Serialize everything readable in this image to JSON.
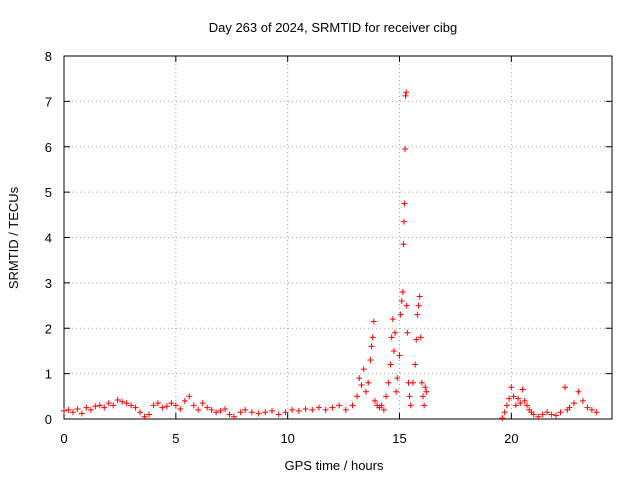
{
  "chart_data": {
    "type": "scatter",
    "title": "Day 263 of 2024, SRMTID for receiver cibg",
    "xlabel": "GPS time / hours",
    "ylabel": "SRMTID / TECUs",
    "xlim": [
      0,
      24.5
    ],
    "ylim": [
      0,
      8
    ],
    "xticks": [
      0,
      5,
      10,
      15,
      20
    ],
    "yticks": [
      0,
      1,
      2,
      3,
      4,
      5,
      6,
      7,
      8
    ],
    "grid": true,
    "marker": "+",
    "color": "#ff0000",
    "series": [
      {
        "name": "SRMTID",
        "points": [
          [
            0.0,
            0.18
          ],
          [
            0.2,
            0.2
          ],
          [
            0.4,
            0.15
          ],
          [
            0.6,
            0.22
          ],
          [
            0.8,
            0.12
          ],
          [
            1.0,
            0.25
          ],
          [
            1.2,
            0.2
          ],
          [
            1.4,
            0.28
          ],
          [
            1.6,
            0.3
          ],
          [
            1.8,
            0.25
          ],
          [
            2.0,
            0.35
          ],
          [
            2.2,
            0.3
          ],
          [
            2.4,
            0.42
          ],
          [
            2.6,
            0.38
          ],
          [
            2.8,
            0.35
          ],
          [
            3.0,
            0.3
          ],
          [
            3.2,
            0.25
          ],
          [
            3.4,
            0.15
          ],
          [
            3.6,
            0.05
          ],
          [
            3.8,
            0.1
          ],
          [
            4.0,
            0.3
          ],
          [
            4.2,
            0.35
          ],
          [
            4.4,
            0.25
          ],
          [
            4.6,
            0.28
          ],
          [
            4.8,
            0.35
          ],
          [
            5.0,
            0.3
          ],
          [
            5.2,
            0.22
          ],
          [
            5.4,
            0.4
          ],
          [
            5.6,
            0.5
          ],
          [
            5.8,
            0.3
          ],
          [
            6.0,
            0.2
          ],
          [
            6.2,
            0.35
          ],
          [
            6.4,
            0.25
          ],
          [
            6.6,
            0.2
          ],
          [
            6.8,
            0.15
          ],
          [
            7.0,
            0.18
          ],
          [
            7.2,
            0.22
          ],
          [
            7.4,
            0.1
          ],
          [
            7.6,
            0.05
          ],
          [
            7.9,
            0.15
          ],
          [
            8.1,
            0.2
          ],
          [
            8.4,
            0.15
          ],
          [
            8.7,
            0.12
          ],
          [
            9.0,
            0.15
          ],
          [
            9.3,
            0.18
          ],
          [
            9.6,
            0.1
          ],
          [
            9.9,
            0.15
          ],
          [
            10.2,
            0.2
          ],
          [
            10.5,
            0.18
          ],
          [
            10.8,
            0.22
          ],
          [
            11.1,
            0.2
          ],
          [
            11.4,
            0.25
          ],
          [
            11.7,
            0.2
          ],
          [
            12.0,
            0.25
          ],
          [
            12.3,
            0.3
          ],
          [
            12.6,
            0.2
          ],
          [
            12.9,
            0.3
          ],
          [
            13.1,
            0.5
          ],
          [
            13.2,
            0.9
          ],
          [
            13.3,
            0.75
          ],
          [
            13.4,
            1.1
          ],
          [
            13.5,
            0.6
          ],
          [
            13.6,
            0.8
          ],
          [
            13.7,
            1.3
          ],
          [
            13.75,
            1.6
          ],
          [
            13.8,
            1.8
          ],
          [
            13.85,
            2.15
          ],
          [
            13.9,
            0.4
          ],
          [
            14.0,
            0.3
          ],
          [
            14.1,
            0.25
          ],
          [
            14.2,
            0.3
          ],
          [
            14.3,
            0.2
          ],
          [
            14.4,
            0.5
          ],
          [
            14.5,
            0.8
          ],
          [
            14.6,
            1.2
          ],
          [
            14.65,
            1.8
          ],
          [
            14.7,
            2.2
          ],
          [
            14.75,
            1.5
          ],
          [
            14.8,
            1.9
          ],
          [
            14.85,
            0.6
          ],
          [
            14.9,
            0.9
          ],
          [
            15.0,
            1.4
          ],
          [
            15.05,
            2.3
          ],
          [
            15.1,
            2.6
          ],
          [
            15.15,
            2.8
          ],
          [
            15.18,
            3.85
          ],
          [
            15.2,
            4.35
          ],
          [
            15.22,
            4.75
          ],
          [
            15.25,
            5.95
          ],
          [
            15.27,
            7.12
          ],
          [
            15.3,
            7.2
          ],
          [
            15.32,
            2.5
          ],
          [
            15.35,
            1.9
          ],
          [
            15.4,
            0.8
          ],
          [
            15.45,
            0.5
          ],
          [
            15.5,
            0.3
          ],
          [
            15.6,
            0.8
          ],
          [
            15.7,
            1.2
          ],
          [
            15.75,
            1.75
          ],
          [
            15.8,
            2.3
          ],
          [
            15.85,
            2.5
          ],
          [
            15.9,
            2.7
          ],
          [
            15.95,
            1.8
          ],
          [
            16.0,
            0.8
          ],
          [
            16.05,
            0.5
          ],
          [
            16.1,
            0.3
          ],
          [
            16.15,
            0.7
          ],
          [
            16.2,
            0.6
          ],
          [
            19.6,
            0.02
          ],
          [
            19.7,
            0.15
          ],
          [
            19.8,
            0.3
          ],
          [
            19.9,
            0.45
          ],
          [
            20.0,
            0.7
          ],
          [
            20.1,
            0.5
          ],
          [
            20.2,
            0.3
          ],
          [
            20.3,
            0.45
          ],
          [
            20.4,
            0.35
          ],
          [
            20.5,
            0.65
          ],
          [
            20.6,
            0.4
          ],
          [
            20.7,
            0.3
          ],
          [
            20.8,
            0.2
          ],
          [
            20.9,
            0.15
          ],
          [
            21.0,
            0.1
          ],
          [
            21.2,
            0.05
          ],
          [
            21.4,
            0.1
          ],
          [
            21.6,
            0.15
          ],
          [
            21.8,
            0.1
          ],
          [
            22.0,
            0.08
          ],
          [
            22.2,
            0.15
          ],
          [
            22.4,
            0.7
          ],
          [
            22.5,
            0.2
          ],
          [
            22.6,
            0.25
          ],
          [
            22.8,
            0.35
          ],
          [
            23.0,
            0.6
          ],
          [
            23.2,
            0.4
          ],
          [
            23.4,
            0.25
          ],
          [
            23.6,
            0.2
          ],
          [
            23.8,
            0.15
          ]
        ]
      }
    ]
  }
}
